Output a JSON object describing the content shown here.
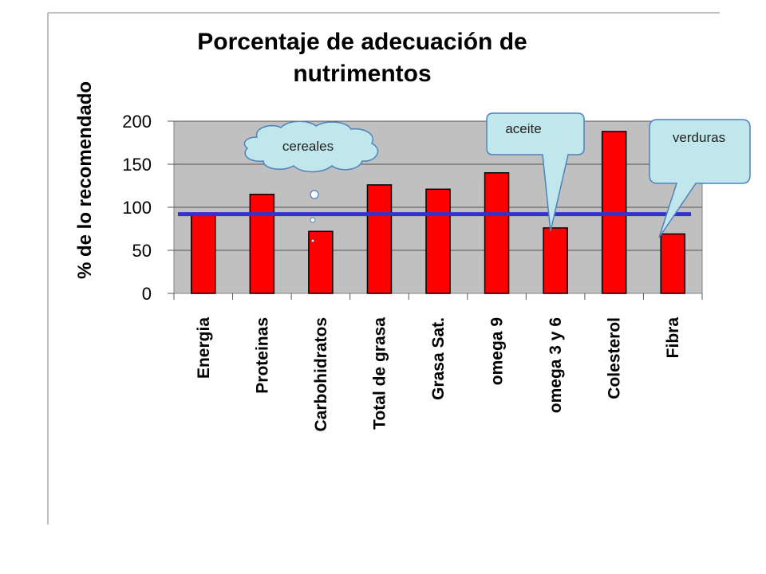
{
  "chart_data": {
    "type": "bar",
    "title": "Porcentaje de adecuación de nutrimentos",
    "title_lines": [
      "Porcentaje de adecuación de",
      "nutrimentos"
    ],
    "ylabel": "% de lo recomendado",
    "xlabel": "",
    "categories": [
      "Energia",
      "Proteinas",
      "Carbohidratos",
      "Total de grasa",
      "Grasa Sat.",
      "omega 9",
      "omega 3 y 6",
      "Colesterol",
      "Fibra"
    ],
    "values": [
      92,
      115,
      72,
      126,
      121,
      140,
      76,
      188,
      69
    ],
    "ylim": [
      0,
      200
    ],
    "yticks": [
      0,
      50,
      100,
      150,
      200
    ],
    "reference_line": 92,
    "grid": true,
    "legend": "none",
    "colors": {
      "bar": "#ff0000",
      "bar_stroke": "#000000",
      "plot_area": "#c0c0c0",
      "reference_line": "#3333cc",
      "callout_fill": "#c0e8ec",
      "callout_stroke": "#4f81bd"
    },
    "annotations": [
      {
        "text": "cereales",
        "shape": "thought-cloud",
        "target": "Carbohidratos"
      },
      {
        "text": "aceite",
        "shape": "rounded-callout",
        "target": "omega 3 y 6"
      },
      {
        "text": "verduras",
        "shape": "rounded-callout",
        "target": "Fibra"
      }
    ]
  }
}
